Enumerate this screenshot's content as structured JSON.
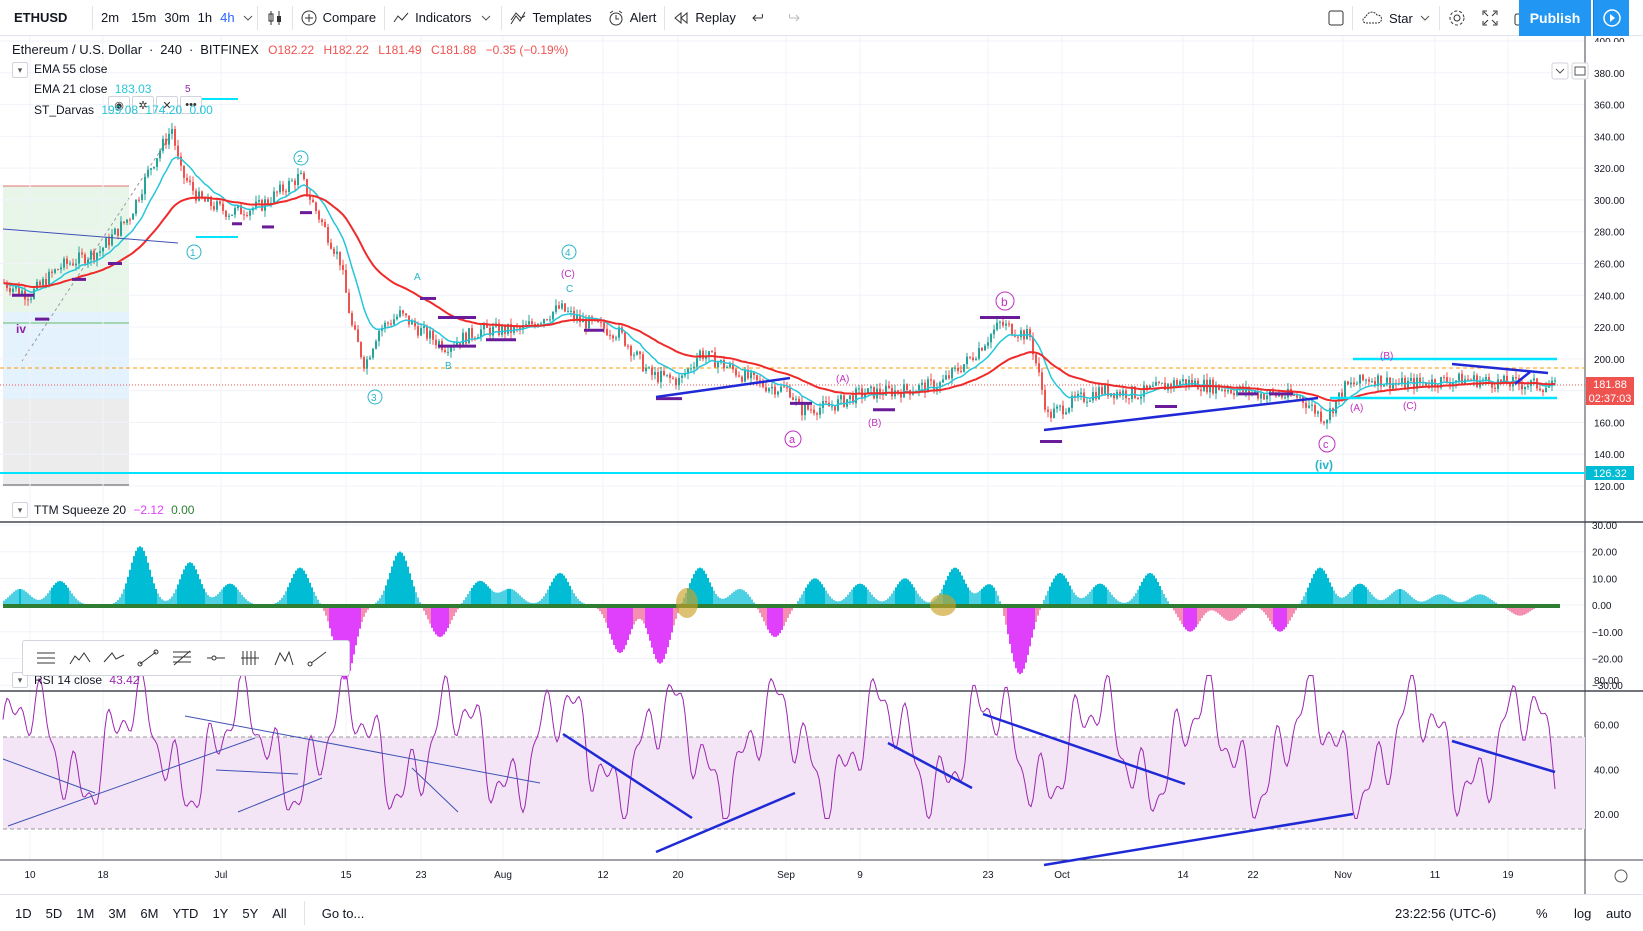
{
  "toolbar": {
    "symbol": "ETHUSD",
    "intervals": [
      "2m",
      "15m",
      "30m",
      "1h",
      "4h"
    ],
    "active_interval": "4h",
    "compare": "Compare",
    "indicators": "Indicators",
    "templates": "Templates",
    "alert": "Alert",
    "replay": "Replay",
    "star": "Star",
    "publish": "Publish"
  },
  "legend": {
    "title": "Ethereum / U.S. Dollar",
    "interval": "240",
    "exchange": "BITFINEX",
    "open": "O182.22",
    "high": "H182.22",
    "low": "L181.49",
    "close": "C181.88",
    "change": "−0.35 (−0.19%)",
    "ema55": {
      "label": "EMA 55 close"
    },
    "ema21": {
      "label": "EMA 21 close",
      "value": "183.03"
    },
    "darvas": {
      "label": "ST_Darvas",
      "v1": "199.08",
      "v2": "174.20",
      "v3": "0.00"
    },
    "ttm": {
      "label": "TTM Squeeze 20",
      "v1": "−2.12",
      "v2": "0.00"
    },
    "rsi": {
      "label": "RSI 14 close",
      "value": "43.42"
    }
  },
  "price_axis": {
    "ticks": [
      "400.00",
      "380.00",
      "360.00",
      "340.00",
      "320.00",
      "300.00",
      "280.00",
      "260.00",
      "240.00",
      "220.00",
      "200.00",
      "180.00",
      "160.00",
      "140.00",
      "120.00"
    ],
    "last_price": "181.88",
    "countdown": "02:37:03",
    "level_label": "126.32"
  },
  "ttm_axis": {
    "ticks": [
      "30.00",
      "20.00",
      "10.00",
      "0.00",
      "−10.00",
      "−20.00",
      "−30.00"
    ]
  },
  "rsi_axis": {
    "ticks": [
      "80.00",
      "60.00",
      "40.00",
      "20.00"
    ]
  },
  "time_axis": {
    "ticks": [
      "10",
      "18",
      "Jul",
      "15",
      "23",
      "Aug",
      "12",
      "20",
      "Sep",
      "9",
      "23",
      "Oct",
      "14",
      "22",
      "Nov",
      "11",
      "19"
    ]
  },
  "wave_labels": {
    "iv_small": "iv",
    "w1": "1",
    "w2": "2",
    "w3": "3",
    "w4": "4",
    "w5": "5",
    "a": "a",
    "b": "b",
    "c": "c",
    "iv": "(iv)",
    "A": "(A)",
    "B": "(B)",
    "C": "(C)",
    "cA": "A",
    "cC": "C",
    "cB": "B"
  },
  "bottom": {
    "ranges": [
      "1D",
      "5D",
      "1M",
      "3M",
      "6M",
      "YTD",
      "1Y",
      "5Y",
      "All"
    ],
    "goto": "Go to...",
    "clock": "23:22:56 (UTC-6)",
    "percent": "%",
    "log": "log",
    "auto": "auto"
  },
  "colors": {
    "ema21": "#ef2a2a",
    "ema55": "#26c6da",
    "darvas": "#00e5ff",
    "trend": "#1f2ad6",
    "wave": "#c030c0",
    "wave_alt": "#26b5c8",
    "rsi": "#9c27b0",
    "accent": "#2196f3"
  }
}
